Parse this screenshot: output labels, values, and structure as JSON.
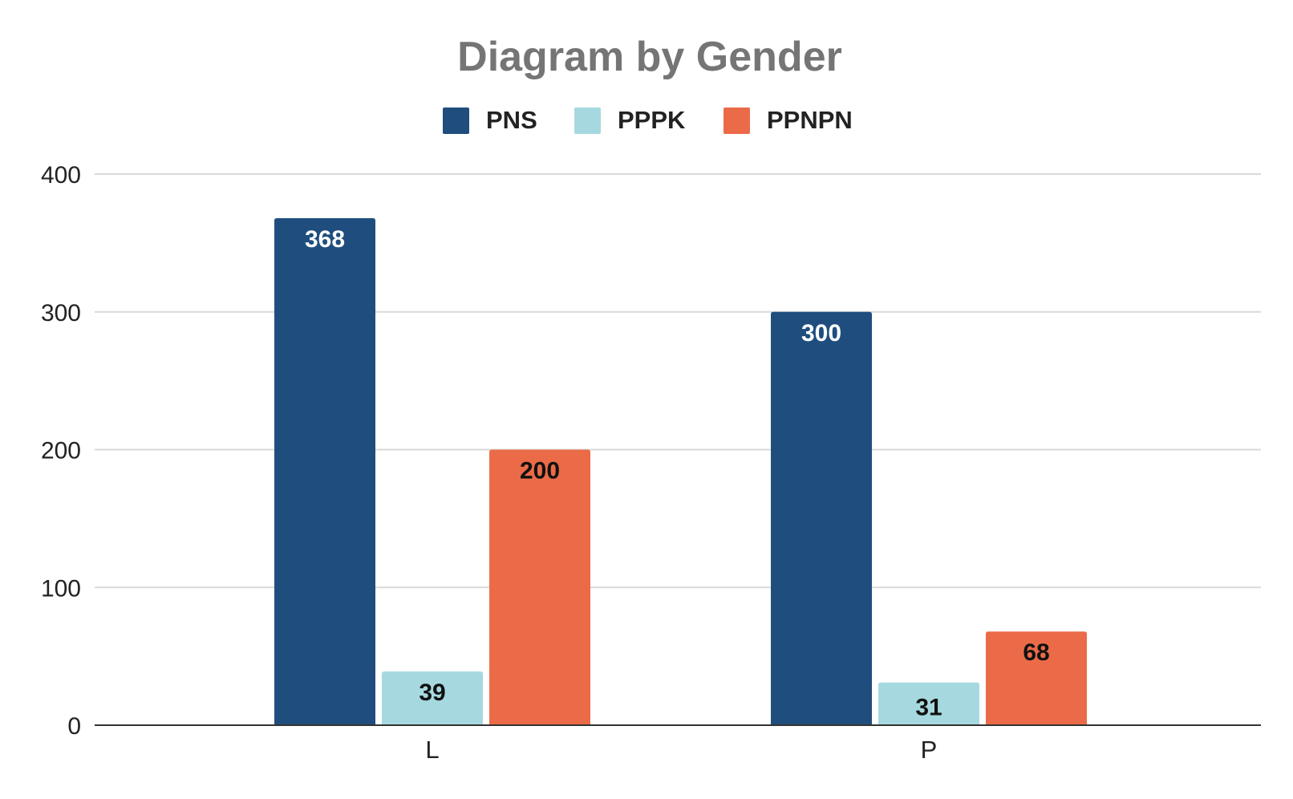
{
  "chart_data": {
    "type": "bar",
    "title": "Diagram by Gender",
    "xlabel": "",
    "ylabel": "",
    "categories": [
      "L",
      "P"
    ],
    "series": [
      {
        "name": "PNS",
        "values": [
          368,
          300
        ],
        "color": "#1f4e7e",
        "label_color": "#ffffff"
      },
      {
        "name": "PPPK",
        "values": [
          39,
          31
        ],
        "color": "#a6d9df",
        "label_color": "#111111"
      },
      {
        "name": "PPNPN",
        "values": [
          200,
          68
        ],
        "color": "#eb6b48",
        "label_color": "#111111"
      }
    ],
    "ylim": [
      0,
      400
    ],
    "yticks": [
      0,
      100,
      200,
      300,
      400
    ],
    "yticks_labels": [
      "0",
      "100",
      "200",
      "300",
      "400"
    ],
    "grid": true,
    "legend": "top-center"
  }
}
